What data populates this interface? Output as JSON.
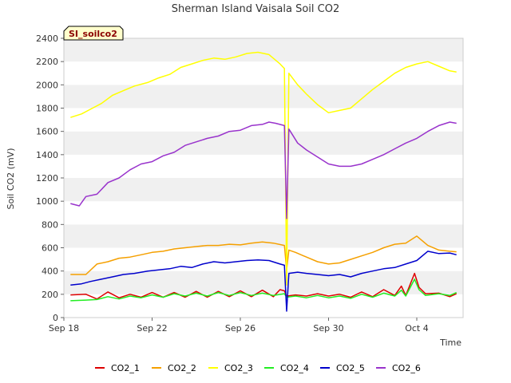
{
  "chart_data": {
    "type": "line",
    "title": "Sherman Island Vaisala Soil CO2",
    "xlabel": "Time",
    "ylabel": "Soil CO2 (mV)",
    "station_badge": "SI_soilco2",
    "xlim": [
      0,
      18.1
    ],
    "ylim": [
      0,
      2400
    ],
    "x_unit": "days since Sep 18",
    "x_ticks": [
      {
        "x": 0,
        "label": "Sep 18"
      },
      {
        "x": 4,
        "label": "Sep 22"
      },
      {
        "x": 8,
        "label": "Sep 26"
      },
      {
        "x": 12,
        "label": "Sep 30"
      },
      {
        "x": 16,
        "label": "Oct 4"
      }
    ],
    "y_ticks": [
      0,
      200,
      400,
      600,
      800,
      1000,
      1200,
      1400,
      1600,
      1800,
      2000,
      2200,
      2400
    ],
    "grid": "alternating horizontal bands",
    "legend_position": "bottom",
    "series": [
      {
        "name": "CO2_1",
        "color": "#dd0000",
        "points": [
          [
            0.3,
            195
          ],
          [
            1.0,
            200
          ],
          [
            1.5,
            160
          ],
          [
            2,
            220
          ],
          [
            2.5,
            170
          ],
          [
            3,
            200
          ],
          [
            3.5,
            175
          ],
          [
            4,
            215
          ],
          [
            4.5,
            175
          ],
          [
            5,
            215
          ],
          [
            5.5,
            175
          ],
          [
            6,
            225
          ],
          [
            6.5,
            175
          ],
          [
            7,
            225
          ],
          [
            7.5,
            180
          ],
          [
            8,
            230
          ],
          [
            8.5,
            180
          ],
          [
            9,
            235
          ],
          [
            9.5,
            180
          ],
          [
            9.8,
            240
          ],
          [
            10,
            230
          ],
          [
            10.1,
            185
          ],
          [
            10.5,
            195
          ],
          [
            11,
            185
          ],
          [
            11.5,
            205
          ],
          [
            12,
            185
          ],
          [
            12.5,
            200
          ],
          [
            13,
            175
          ],
          [
            13.5,
            220
          ],
          [
            14,
            180
          ],
          [
            14.5,
            240
          ],
          [
            15,
            190
          ],
          [
            15.3,
            270
          ],
          [
            15.5,
            190
          ],
          [
            15.9,
            380
          ],
          [
            16.1,
            260
          ],
          [
            16.4,
            205
          ],
          [
            17,
            210
          ],
          [
            17.5,
            180
          ],
          [
            17.8,
            205
          ]
        ]
      },
      {
        "name": "CO2_2",
        "color": "#f5a000",
        "points": [
          [
            0.3,
            370
          ],
          [
            1,
            370
          ],
          [
            1.5,
            460
          ],
          [
            2,
            480
          ],
          [
            2.5,
            510
          ],
          [
            3,
            520
          ],
          [
            3.5,
            540
          ],
          [
            4,
            560
          ],
          [
            4.5,
            570
          ],
          [
            5,
            590
          ],
          [
            5.5,
            600
          ],
          [
            6,
            610
          ],
          [
            6.5,
            620
          ],
          [
            7,
            620
          ],
          [
            7.5,
            630
          ],
          [
            8,
            625
          ],
          [
            8.5,
            640
          ],
          [
            9,
            650
          ],
          [
            9.5,
            640
          ],
          [
            10,
            620
          ],
          [
            10.1,
            410
          ],
          [
            10.2,
            580
          ],
          [
            10.5,
            560
          ],
          [
            11,
            520
          ],
          [
            11.5,
            480
          ],
          [
            12,
            460
          ],
          [
            12.5,
            470
          ],
          [
            13,
            500
          ],
          [
            13.5,
            530
          ],
          [
            14,
            560
          ],
          [
            14.5,
            600
          ],
          [
            15,
            630
          ],
          [
            15.5,
            640
          ],
          [
            16,
            700
          ],
          [
            16.5,
            620
          ],
          [
            17,
            580
          ],
          [
            17.5,
            570
          ],
          [
            17.8,
            565
          ]
        ]
      },
      {
        "name": "CO2_3",
        "color": "#ffff00",
        "points": [
          [
            0.3,
            1720
          ],
          [
            0.8,
            1750
          ],
          [
            1.2,
            1790
          ],
          [
            1.7,
            1840
          ],
          [
            2.2,
            1910
          ],
          [
            2.7,
            1950
          ],
          [
            3.2,
            1990
          ],
          [
            3.8,
            2020
          ],
          [
            4.3,
            2060
          ],
          [
            4.8,
            2090
          ],
          [
            5.3,
            2150
          ],
          [
            5.8,
            2180
          ],
          [
            6.3,
            2210
          ],
          [
            6.8,
            2230
          ],
          [
            7.3,
            2220
          ],
          [
            7.8,
            2240
          ],
          [
            8.3,
            2270
          ],
          [
            8.8,
            2280
          ],
          [
            9.3,
            2260
          ],
          [
            9.8,
            2180
          ],
          [
            10,
            2140
          ],
          [
            10.1,
            280
          ],
          [
            10.2,
            2100
          ],
          [
            10.6,
            2000
          ],
          [
            11,
            1920
          ],
          [
            11.5,
            1830
          ],
          [
            12,
            1760
          ],
          [
            12.5,
            1780
          ],
          [
            13,
            1800
          ],
          [
            13.5,
            1880
          ],
          [
            14,
            1960
          ],
          [
            14.5,
            2030
          ],
          [
            15,
            2100
          ],
          [
            15.5,
            2150
          ],
          [
            16,
            2180
          ],
          [
            16.5,
            2200
          ],
          [
            17,
            2160
          ],
          [
            17.5,
            2120
          ],
          [
            17.8,
            2110
          ]
        ]
      },
      {
        "name": "CO2_4",
        "color": "#22ee22",
        "points": [
          [
            0.3,
            145
          ],
          [
            1,
            150
          ],
          [
            1.5,
            155
          ],
          [
            2,
            180
          ],
          [
            2.5,
            160
          ],
          [
            3,
            185
          ],
          [
            3.5,
            170
          ],
          [
            4,
            195
          ],
          [
            4.5,
            175
          ],
          [
            5,
            205
          ],
          [
            5.5,
            185
          ],
          [
            6,
            210
          ],
          [
            6.5,
            185
          ],
          [
            7,
            215
          ],
          [
            7.5,
            190
          ],
          [
            8,
            215
          ],
          [
            8.5,
            190
          ],
          [
            9,
            210
          ],
          [
            9.5,
            190
          ],
          [
            10,
            205
          ],
          [
            10.1,
            175
          ],
          [
            10.5,
            185
          ],
          [
            11,
            170
          ],
          [
            11.5,
            190
          ],
          [
            12,
            170
          ],
          [
            12.5,
            185
          ],
          [
            13,
            165
          ],
          [
            13.5,
            200
          ],
          [
            14,
            175
          ],
          [
            14.5,
            210
          ],
          [
            15,
            185
          ],
          [
            15.3,
            235
          ],
          [
            15.5,
            185
          ],
          [
            15.9,
            330
          ],
          [
            16.1,
            240
          ],
          [
            16.4,
            190
          ],
          [
            17,
            205
          ],
          [
            17.5,
            190
          ],
          [
            17.8,
            215
          ]
        ]
      },
      {
        "name": "CO2_5",
        "color": "#0000cc",
        "points": [
          [
            0.3,
            280
          ],
          [
            0.8,
            290
          ],
          [
            1.2,
            310
          ],
          [
            1.7,
            330
          ],
          [
            2.2,
            350
          ],
          [
            2.7,
            370
          ],
          [
            3.2,
            380
          ],
          [
            3.8,
            400
          ],
          [
            4.3,
            410
          ],
          [
            4.8,
            420
          ],
          [
            5.3,
            440
          ],
          [
            5.8,
            430
          ],
          [
            6.3,
            460
          ],
          [
            6.8,
            480
          ],
          [
            7.3,
            470
          ],
          [
            7.8,
            480
          ],
          [
            8.3,
            490
          ],
          [
            8.8,
            495
          ],
          [
            9.3,
            490
          ],
          [
            9.8,
            460
          ],
          [
            10,
            450
          ],
          [
            10.1,
            55
          ],
          [
            10.2,
            380
          ],
          [
            10.6,
            390
          ],
          [
            11,
            380
          ],
          [
            11.5,
            370
          ],
          [
            12,
            360
          ],
          [
            12.5,
            370
          ],
          [
            13,
            350
          ],
          [
            13.5,
            380
          ],
          [
            14,
            400
          ],
          [
            14.5,
            420
          ],
          [
            15,
            430
          ],
          [
            15.5,
            460
          ],
          [
            16,
            490
          ],
          [
            16.5,
            570
          ],
          [
            17,
            550
          ],
          [
            17.5,
            555
          ],
          [
            17.8,
            540
          ]
        ]
      },
      {
        "name": "CO2_6",
        "color": "#9933cc",
        "points": [
          [
            0.3,
            980
          ],
          [
            0.7,
            960
          ],
          [
            1,
            1040
          ],
          [
            1.5,
            1060
          ],
          [
            2,
            1160
          ],
          [
            2.5,
            1200
          ],
          [
            3,
            1270
          ],
          [
            3.5,
            1320
          ],
          [
            4,
            1340
          ],
          [
            4.5,
            1390
          ],
          [
            5,
            1420
          ],
          [
            5.5,
            1480
          ],
          [
            6,
            1510
          ],
          [
            6.5,
            1540
          ],
          [
            7,
            1560
          ],
          [
            7.5,
            1600
          ],
          [
            8,
            1610
          ],
          [
            8.5,
            1650
          ],
          [
            9,
            1660
          ],
          [
            9.3,
            1680
          ],
          [
            9.6,
            1670
          ],
          [
            10,
            1650
          ],
          [
            10.1,
            850
          ],
          [
            10.2,
            1620
          ],
          [
            10.6,
            1500
          ],
          [
            11,
            1440
          ],
          [
            11.5,
            1380
          ],
          [
            12,
            1320
          ],
          [
            12.5,
            1300
          ],
          [
            13,
            1300
          ],
          [
            13.5,
            1320
          ],
          [
            14,
            1360
          ],
          [
            14.5,
            1400
          ],
          [
            15,
            1450
          ],
          [
            15.5,
            1500
          ],
          [
            16,
            1540
          ],
          [
            16.5,
            1600
          ],
          [
            17,
            1650
          ],
          [
            17.5,
            1680
          ],
          [
            17.8,
            1670
          ]
        ]
      }
    ]
  }
}
